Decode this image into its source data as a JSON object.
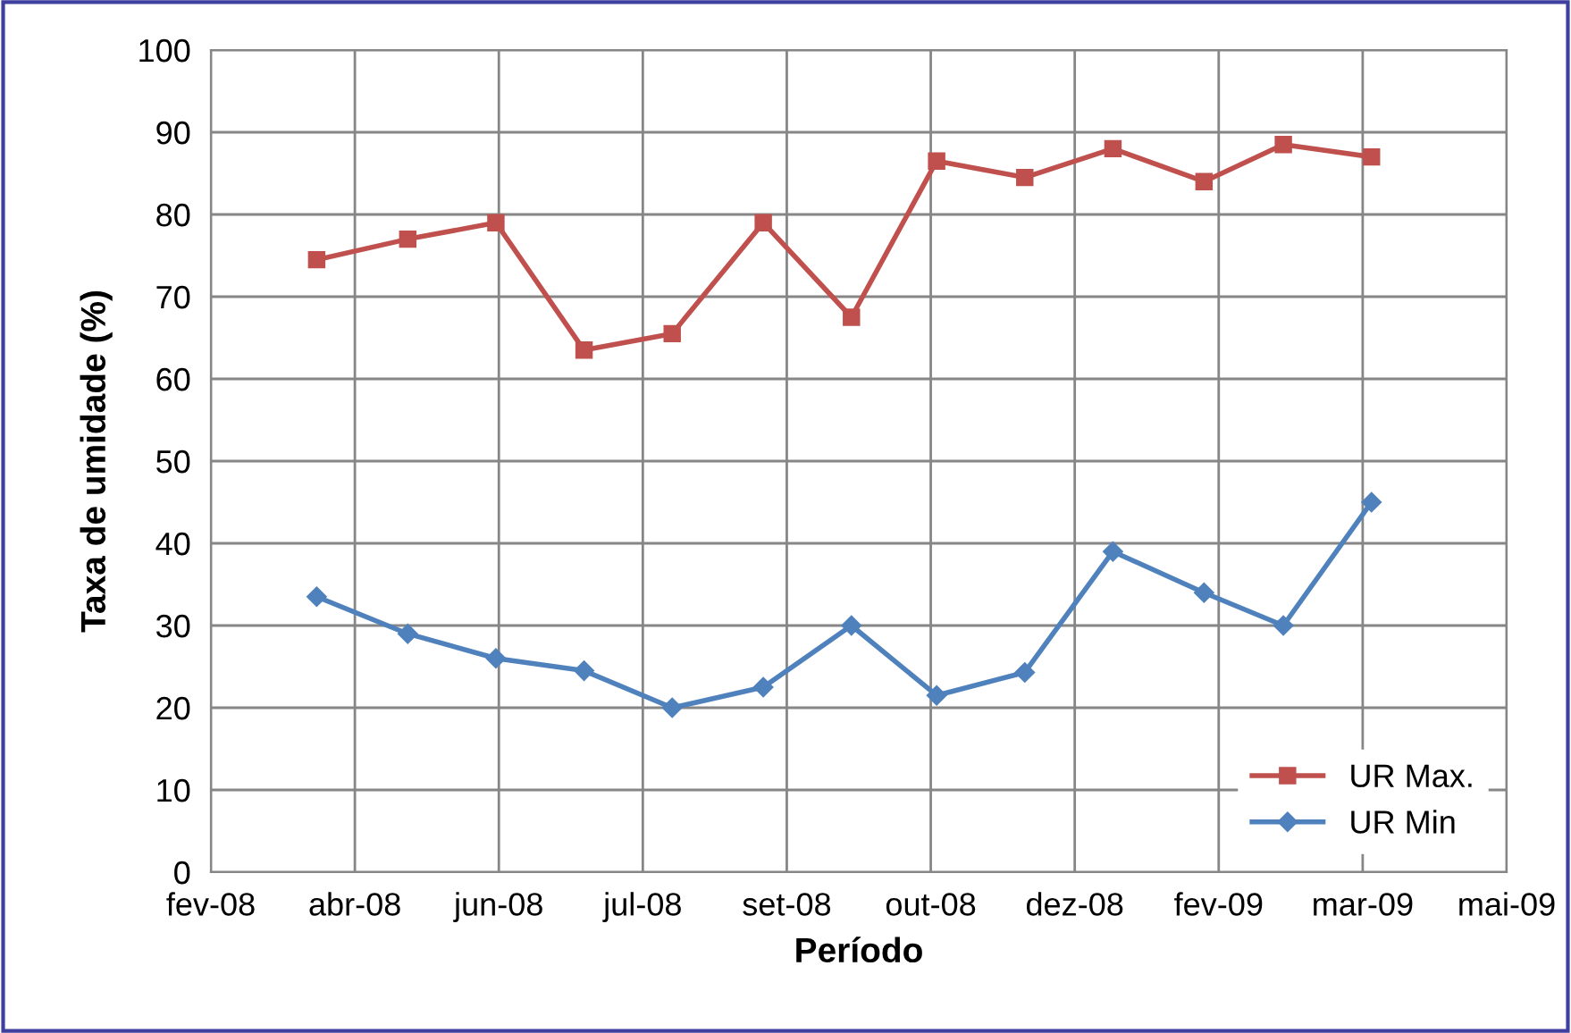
{
  "chart_data": {
    "type": "line",
    "xlabel": "Período",
    "ylabel": "Taxa de umidade (%)",
    "x": [
      "2008-04-03",
      "2008-05-04",
      "2008-06-03",
      "2008-07-03",
      "2008-08-02",
      "2008-09-02",
      "2008-10-02",
      "2008-10-31",
      "2008-11-30",
      "2008-12-30",
      "2009-01-30",
      "2009-02-26",
      "2009-03-28"
    ],
    "series": [
      {
        "name": "UR Max.",
        "color": "#c0504d",
        "marker": "square",
        "values": [
          74.5,
          77,
          79,
          63.5,
          65.5,
          79,
          67.5,
          86.5,
          84.5,
          88,
          84,
          88.5,
          87
        ]
      },
      {
        "name": "UR Min",
        "color": "#4f81bd",
        "marker": "diamond",
        "values": [
          33.5,
          29,
          26,
          24.5,
          20,
          22.5,
          30,
          21.5,
          24.3,
          39,
          34,
          30,
          45
        ]
      }
    ],
    "xlim": [
      "2008-02-27",
      "2009-05-13"
    ],
    "xticks": [
      {
        "value": "2008-02-27",
        "label": "fev-08"
      },
      {
        "value": "2008-04-16",
        "label": "abr-08"
      },
      {
        "value": "2008-06-04",
        "label": "jun-08"
      },
      {
        "value": "2008-07-23",
        "label": "jul-08"
      },
      {
        "value": "2008-09-10",
        "label": "set-08"
      },
      {
        "value": "2008-10-29",
        "label": "out-08"
      },
      {
        "value": "2008-12-17",
        "label": "dez-08"
      },
      {
        "value": "2009-02-04",
        "label": "fev-09"
      },
      {
        "value": "2009-03-25",
        "label": "mar-09"
      },
      {
        "value": "2009-05-13",
        "label": "mai-09"
      }
    ],
    "ylim": [
      0,
      100
    ],
    "yticks": [
      0,
      10,
      20,
      30,
      40,
      50,
      60,
      70,
      80,
      90,
      100
    ],
    "grid": true,
    "legend": "bottom right",
    "line_style": "solid"
  }
}
